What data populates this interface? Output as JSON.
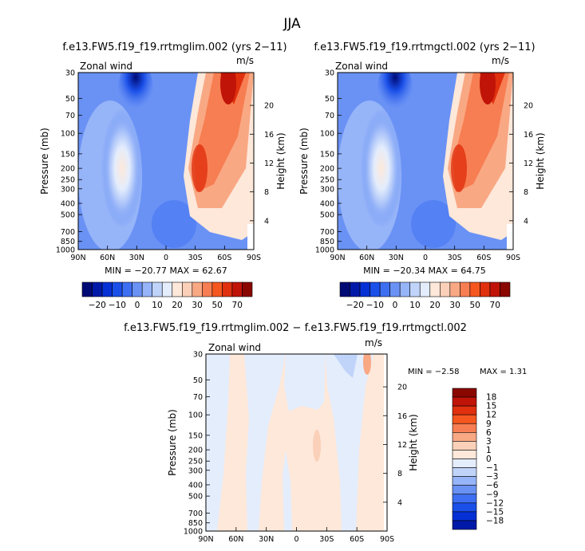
{
  "page_title": "JJA",
  "colors": {
    "blue_scale": [
      "#000a75",
      "#0019a8",
      "#0530d6",
      "#1a4fe8",
      "#3e6ff2",
      "#6a92f5",
      "#96b4f8",
      "#c0d4fa",
      "#e4edfc"
    ],
    "red_scale": [
      "#fde8da",
      "#fbd0b8",
      "#f9a884",
      "#f77e52",
      "#f5571f",
      "#e0300e",
      "#c01408",
      "#8a0700"
    ],
    "zero_color": "#fde8da"
  },
  "chart_data": [
    {
      "type": "heatmap",
      "title": "f.e13.FW5.f19_f19.rrtmglim.002 (yrs 2−11)",
      "variable": "Zonal wind",
      "units": "m/s",
      "ylabel": "Pressure (mb)",
      "y2label": "Height (km)",
      "x_ticks": [
        "90N",
        "60N",
        "30N",
        "0",
        "30S",
        "60S",
        "90S"
      ],
      "y_ticks": [
        "30",
        "50",
        "70",
        "100",
        "150",
        "200",
        "250",
        "300",
        "400",
        "500",
        "700",
        "850",
        "1000"
      ],
      "y2_ticks": [
        "20",
        "16",
        "12",
        "8",
        "4"
      ],
      "stats": "MIN = −20.77   MAX =  62.67",
      "colorbar_levels": [
        "−20",
        "−10",
        "0",
        "10",
        "20",
        "30",
        "50",
        "70"
      ]
    },
    {
      "type": "heatmap",
      "title": "f.e13.FW5.f19_f19.rrtmgctl.002 (yrs 2−11)",
      "variable": "Zonal wind",
      "units": "m/s",
      "ylabel": "Pressure (mb)",
      "y2label": "Height (km)",
      "x_ticks": [
        "90N",
        "60N",
        "30N",
        "0",
        "30S",
        "60S",
        "90S"
      ],
      "y_ticks": [
        "30",
        "50",
        "70",
        "100",
        "150",
        "200",
        "250",
        "300",
        "400",
        "500",
        "700",
        "850",
        "1000"
      ],
      "y2_ticks": [
        "20",
        "16",
        "12",
        "8",
        "4"
      ],
      "stats": "MIN = −20.34   MAX =  64.75",
      "colorbar_levels": [
        "−20",
        "−10",
        "0",
        "10",
        "20",
        "30",
        "50",
        "70"
      ]
    },
    {
      "type": "heatmap",
      "title": "f.e13.FW5.f19_f19.rrtmglim.002 − f.e13.FW5.f19_f19.rrtmgctl.002",
      "variable": "Zonal wind",
      "units": "m/s",
      "ylabel": "Pressure (mb)",
      "y2label": "Height (km)",
      "x_ticks": [
        "90N",
        "60N",
        "30N",
        "0",
        "30S",
        "60S",
        "90S"
      ],
      "y_ticks": [
        "30",
        "50",
        "70",
        "100",
        "150",
        "200",
        "250",
        "300",
        "400",
        "500",
        "700",
        "850",
        "1000"
      ],
      "y2_ticks": [
        "20",
        "16",
        "12",
        "8",
        "4"
      ],
      "stats_min": "MIN =   −2.58",
      "stats_max": "MAX =    1.31",
      "colorbar_levels": [
        "18",
        "15",
        "12",
        "9",
        "6",
        "3",
        "1",
        "0",
        "−1",
        "−3",
        "−6",
        "−9",
        "−12",
        "−15",
        "−18"
      ]
    }
  ]
}
